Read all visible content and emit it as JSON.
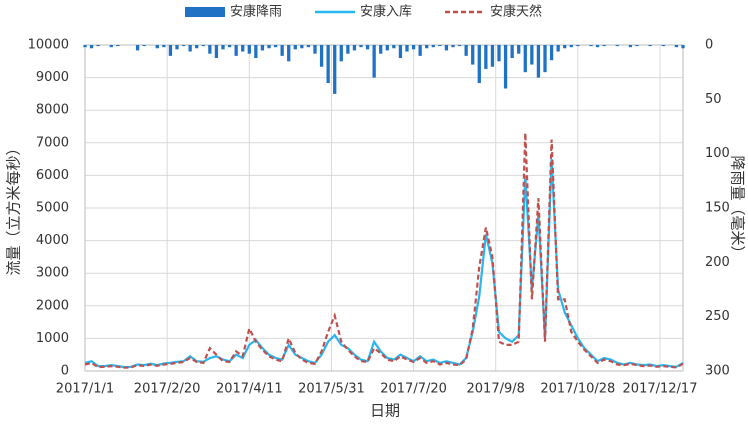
{
  "chart_data": {
    "type": "line",
    "x_label": "日期",
    "y_label": "流量（立方米每秒）",
    "y2_label": "降雨量（毫米）",
    "xlim": [
      0,
      364
    ],
    "xticks": [
      {
        "value": 0,
        "label": "2017/1/1"
      },
      {
        "value": 50,
        "label": "2017/2/20"
      },
      {
        "value": 100,
        "label": "2017/4/11"
      },
      {
        "value": 150,
        "label": "2017/5/31"
      },
      {
        "value": 200,
        "label": "2017/7/20"
      },
      {
        "value": 250,
        "label": "2017/9/8"
      },
      {
        "value": 300,
        "label": "2017/10/28"
      },
      {
        "value": 350,
        "label": "2017/12/17"
      }
    ],
    "ylim": [
      0,
      10000
    ],
    "yticks": [
      0,
      1000,
      2000,
      3000,
      4000,
      5000,
      6000,
      7000,
      8000,
      9000,
      10000
    ],
    "y2lim": [
      300,
      0
    ],
    "y2ticks": [
      0,
      50,
      100,
      150,
      200,
      250,
      300
    ],
    "grid": true,
    "x": [
      0,
      4,
      8,
      12,
      16,
      20,
      24,
      28,
      32,
      36,
      40,
      44,
      48,
      52,
      56,
      60,
      64,
      68,
      72,
      76,
      80,
      84,
      88,
      92,
      96,
      100,
      104,
      108,
      112,
      116,
      120,
      124,
      128,
      132,
      136,
      140,
      144,
      148,
      152,
      156,
      160,
      164,
      168,
      172,
      176,
      180,
      184,
      188,
      192,
      196,
      200,
      204,
      208,
      212,
      216,
      220,
      224,
      228,
      232,
      236,
      240,
      244,
      248,
      252,
      256,
      260,
      264,
      268,
      272,
      276,
      280,
      284,
      288,
      292,
      296,
      300,
      304,
      308,
      312,
      316,
      320,
      324,
      328,
      332,
      336,
      340,
      344,
      348,
      352,
      356,
      360,
      364
    ],
    "series": [
      {
        "name": "安康降雨",
        "type": "bar",
        "axis": "y2",
        "color": "#1f72c4",
        "values": [
          2,
          3,
          1,
          0,
          2,
          1,
          0,
          0,
          5,
          1,
          0,
          3,
          2,
          10,
          4,
          1,
          6,
          3,
          1,
          8,
          12,
          4,
          2,
          10,
          6,
          8,
          12,
          5,
          3,
          2,
          10,
          15,
          4,
          3,
          2,
          8,
          20,
          35,
          45,
          15,
          8,
          5,
          2,
          4,
          30,
          8,
          5,
          3,
          12,
          6,
          4,
          10,
          3,
          2,
          1,
          5,
          2,
          1,
          10,
          18,
          35,
          22,
          20,
          15,
          40,
          12,
          8,
          25,
          18,
          30,
          25,
          14,
          6,
          3,
          2,
          1,
          0,
          1,
          2,
          1,
          0,
          1,
          0,
          2,
          1,
          0,
          1,
          0,
          1,
          0,
          2,
          3
        ]
      },
      {
        "name": "安康入库",
        "type": "line",
        "color": "#29b6f0",
        "values": [
          250,
          300,
          150,
          150,
          180,
          150,
          120,
          130,
          200,
          180,
          220,
          180,
          230,
          250,
          280,
          300,
          450,
          300,
          280,
          400,
          450,
          350,
          300,
          500,
          400,
          800,
          950,
          700,
          500,
          400,
          350,
          800,
          500,
          400,
          300,
          250,
          500,
          900,
          1100,
          800,
          700,
          500,
          350,
          300,
          900,
          600,
          400,
          350,
          500,
          400,
          300,
          450,
          300,
          350,
          250,
          300,
          250,
          200,
          400,
          1200,
          2300,
          4200,
          3300,
          1200,
          1000,
          900,
          1100,
          6000,
          2500,
          4800,
          1000,
          6500,
          2500,
          1800,
          1400,
          1000,
          700,
          500,
          300,
          400,
          350,
          250,
          200,
          250,
          200,
          180,
          200,
          150,
          180,
          150,
          130,
          250
        ]
      },
      {
        "name": "安康天然",
        "type": "line",
        "dash": true,
        "color": "#c0504d",
        "values": [
          200,
          250,
          120,
          130,
          150,
          130,
          100,
          110,
          180,
          150,
          200,
          160,
          200,
          220,
          250,
          280,
          400,
          280,
          250,
          700,
          500,
          300,
          280,
          600,
          450,
          1300,
          900,
          650,
          450,
          350,
          300,
          1000,
          550,
          350,
          250,
          220,
          600,
          1200,
          1700,
          900,
          650,
          450,
          300,
          280,
          700,
          550,
          350,
          300,
          450,
          350,
          280,
          400,
          250,
          300,
          200,
          250,
          200,
          180,
          350,
          1300,
          3200,
          4400,
          3500,
          900,
          800,
          800,
          900,
          7300,
          2200,
          5300,
          900,
          7100,
          2200,
          2200,
          1200,
          900,
          650,
          450,
          250,
          350,
          300,
          200,
          180,
          220,
          180,
          150,
          170,
          130,
          150,
          130,
          110,
          220
        ]
      }
    ],
    "legend": "top"
  }
}
